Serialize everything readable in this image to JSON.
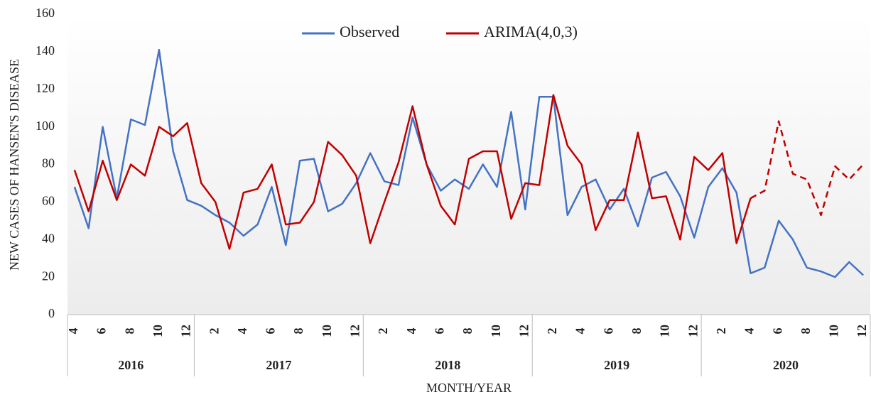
{
  "chart_data": {
    "type": "line",
    "y_axis_label": "NEW CASES OF HANSEN'S DISEASE",
    "x_axis_label": "MONTH/YEAR",
    "categories": [
      "4",
      null,
      "6",
      null,
      "8",
      null,
      "10",
      null,
      "12",
      null,
      "2",
      null,
      "4",
      null,
      "6",
      null,
      "8",
      null,
      "10",
      null,
      "12",
      null,
      "2",
      null,
      "4",
      null,
      "6",
      null,
      "8",
      null,
      "10",
      null,
      "12",
      null,
      "2",
      null,
      "4",
      null,
      "6",
      null,
      "8",
      null,
      "10",
      null,
      "12",
      null,
      "2",
      null,
      "4",
      null,
      "6",
      null,
      "8",
      null,
      "10",
      null,
      "12"
    ],
    "groups": [
      "2016",
      "2017",
      "2018",
      "2019",
      "2020"
    ],
    "series": [
      {
        "name": "Observed",
        "color": "#4472c4",
        "values": [
          68,
          46,
          100,
          62,
          104,
          101,
          141,
          87,
          61,
          58,
          53,
          49,
          42,
          48,
          68,
          37,
          82,
          83,
          55,
          59,
          70,
          86,
          71,
          69,
          105,
          80,
          66,
          72,
          67,
          80,
          68,
          108,
          56,
          116,
          116,
          53,
          68,
          72,
          56,
          67,
          47,
          73,
          76,
          63,
          41,
          68,
          78,
          65,
          22,
          25,
          50,
          40,
          25,
          23,
          20,
          28,
          21
        ]
      },
      {
        "name": "ARIMA(4,0,3)",
        "color": "#c00000",
        "dashed_from": 48,
        "values": [
          77,
          55,
          82,
          61,
          80,
          74,
          100,
          95,
          102,
          70,
          60,
          35,
          65,
          67,
          80,
          48,
          49,
          60,
          92,
          85,
          74,
          38,
          60,
          81,
          111,
          80,
          58,
          48,
          83,
          87,
          87,
          51,
          70,
          69,
          117,
          90,
          80,
          45,
          61,
          61,
          97,
          62,
          63,
          40,
          84,
          77,
          86,
          38,
          62,
          66,
          103,
          75,
          72,
          53,
          79,
          72,
          80
        ]
      }
    ],
    "ylim": [
      0,
      160
    ],
    "yticks": [
      0,
      20,
      40,
      60,
      80,
      100,
      120,
      140,
      160
    ],
    "legend": "top",
    "grid": false
  }
}
